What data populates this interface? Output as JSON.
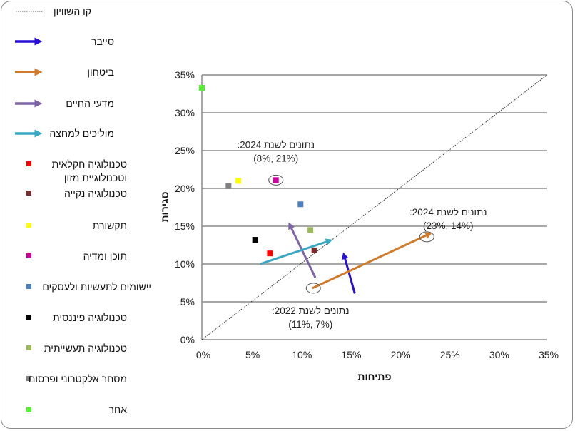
{
  "chart_data": {
    "type": "scatter",
    "title": "",
    "xlabel": "פתיחות",
    "ylabel": "סגירות",
    "xlim": [
      0,
      35
    ],
    "ylim": [
      0,
      35
    ],
    "x_ticks": [
      "0%",
      "5%",
      "10%",
      "15%",
      "20%",
      "25%",
      "30%",
      "35%"
    ],
    "y_ticks": [
      "0%",
      "5%",
      "10%",
      "15%",
      "20%",
      "25%",
      "30%",
      "35%"
    ],
    "grid": "horizontal",
    "legend_position": "left",
    "equality_line": {
      "name": "קו השוויון",
      "from": [
        0,
        0
      ],
      "to": [
        35,
        35
      ],
      "color": "#333333"
    },
    "arrows": [
      {
        "name": "סייבר",
        "color": "#2a0fd6",
        "from": [
          15.5,
          6.1
        ],
        "to": [
          14.4,
          11.2
        ]
      },
      {
        "name": "ביטחון",
        "color": "#d07a2c",
        "from": [
          11.2,
          6.8
        ],
        "to": [
          23.1,
          14.0
        ]
      },
      {
        "name": "מדעי החיים",
        "color": "#7e62a8",
        "from": [
          11.5,
          8.2
        ],
        "to": [
          8.9,
          15.2
        ]
      },
      {
        "name": "מוליכים למחצה",
        "color": "#3aa8c4",
        "from": [
          5.9,
          10.0
        ],
        "to": [
          13.0,
          13.1
        ]
      }
    ],
    "points": [
      {
        "name": "טכנולוגיה חקלאית וטכנולוגיית מזון",
        "color": "#ff0000",
        "x": 6.9,
        "y": 11.4
      },
      {
        "name": "טכנולוגיה נקייה",
        "color": "#7b2c2c",
        "x": 11.4,
        "y": 11.8
      },
      {
        "name": "תקשורת",
        "color": "#ffff00",
        "x": 3.7,
        "y": 21.0
      },
      {
        "name": "תוכן ומדיה",
        "color": "#cc0099",
        "x": 7.5,
        "y": 21.1
      },
      {
        "name": "יישומים לתעשיות ולעסקים",
        "color": "#4a7fc1",
        "x": 10.0,
        "y": 17.9
      },
      {
        "name": "טכנולוגיה פיננסית",
        "color": "#000000",
        "x": 5.4,
        "y": 13.2
      },
      {
        "name": "טכנולוגיה תעשייתית",
        "color": "#9bbb59",
        "x": 11.0,
        "y": 14.5
      },
      {
        "name": "מסחר אלקטרוני ופרסום",
        "color": "#808080",
        "x": 2.7,
        "y": 20.3
      },
      {
        "name": "אחר",
        "color": "#55ee33",
        "x": 0.0,
        "y": 33.3
      }
    ],
    "annotations": [
      {
        "line1": "נתונים לשנת 2024:",
        "line2": "(8%, 21%)",
        "x": 7.5,
        "y": 21.1
      },
      {
        "line1": "נתונים לשנת 2024:",
        "line2": "(23%, 14%)",
        "x": 22.8,
        "y": 13.6
      },
      {
        "line1": "נתונים לשנת 2022:",
        "line2": "(11%, 7%)",
        "x": 11.3,
        "y": 6.8
      }
    ]
  }
}
